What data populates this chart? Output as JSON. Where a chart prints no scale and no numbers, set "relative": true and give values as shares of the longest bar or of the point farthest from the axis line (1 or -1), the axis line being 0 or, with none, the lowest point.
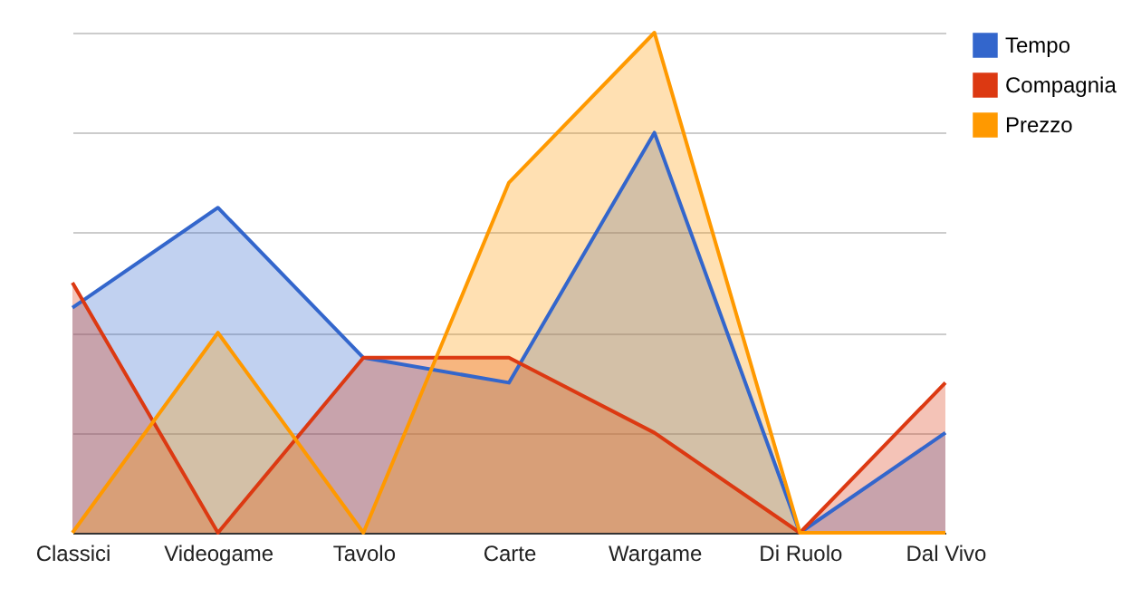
{
  "chart_data": {
    "type": "area",
    "relative": true,
    "grid": "y",
    "legend": "top right",
    "categories": [
      "Classici",
      "Videogame",
      "Tavolo",
      "Carte",
      "Wargame",
      "Di Ruolo",
      "Dal Vivo"
    ],
    "series": [
      {
        "name": "Tempo",
        "color": "#3366cc",
        "values": [
          0.45,
          0.65,
          0.35,
          0.3,
          0.8,
          0,
          0.2
        ]
      },
      {
        "name": "Compagnia",
        "color": "#dc3912",
        "values": [
          0.5,
          0,
          0.35,
          0.35,
          0.2,
          0,
          0.3
        ]
      },
      {
        "name": "Prezzo",
        "color": "#ff9900",
        "values": [
          0,
          0.4,
          0,
          0.7,
          1,
          0,
          0
        ]
      }
    ]
  }
}
